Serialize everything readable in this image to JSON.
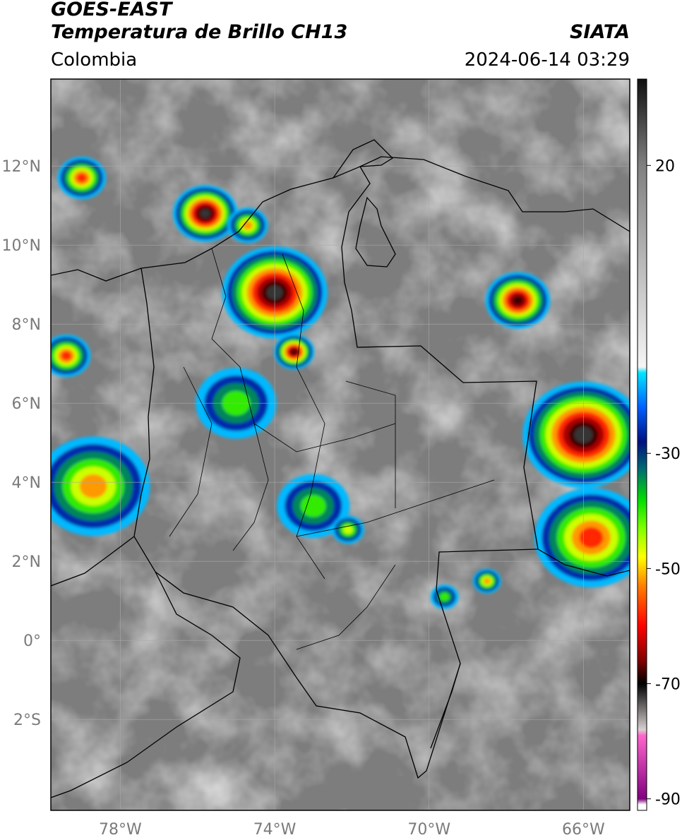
{
  "header": {
    "satellite": "GOES-EAST",
    "product": "Temperatura de Brillo CH13",
    "brand": "SIATA",
    "region": "Colombia",
    "timestamp": "2024-06-14 03:29"
  },
  "map": {
    "lon_range": [
      -79.8,
      -64.8
    ],
    "lat_range": [
      -4.3,
      14.2
    ],
    "lat_ticks": [
      {
        "value": 12,
        "label": "12°N"
      },
      {
        "value": 10,
        "label": "10°N"
      },
      {
        "value": 8,
        "label": "8°N"
      },
      {
        "value": 6,
        "label": "6°N"
      },
      {
        "value": 4,
        "label": "4°N"
      },
      {
        "value": 2,
        "label": "2°N"
      },
      {
        "value": 0,
        "label": "0°"
      },
      {
        "value": -2,
        "label": "2°S"
      }
    ],
    "lon_ticks": [
      {
        "value": -78,
        "label": "78°W"
      },
      {
        "value": -74,
        "label": "74°W"
      },
      {
        "value": -70,
        "label": "70°W"
      },
      {
        "value": -66,
        "label": "66°W"
      }
    ],
    "colors": {
      "background_gray": "#7d7d7d",
      "border": "#000000",
      "grid": "#a9a9a9"
    }
  },
  "colorbar": {
    "range": [
      -92,
      35
    ],
    "ticks": [
      {
        "value": 20,
        "label": "20"
      },
      {
        "value": -30,
        "label": "-30"
      },
      {
        "value": -50,
        "label": "-50"
      },
      {
        "value": -70,
        "label": "-70"
      },
      {
        "value": -90,
        "label": "-90"
      }
    ],
    "stops": [
      {
        "value": 35,
        "color": "#101010"
      },
      {
        "value": 20,
        "color": "#808080"
      },
      {
        "value": -15,
        "color": "#f5f5f5"
      },
      {
        "value": -16,
        "color": "#00e5ff"
      },
      {
        "value": -22,
        "color": "#0060ff"
      },
      {
        "value": -28,
        "color": "#001080"
      },
      {
        "value": -33,
        "color": "#007070"
      },
      {
        "value": -38,
        "color": "#00dd00"
      },
      {
        "value": -43,
        "color": "#80ff00"
      },
      {
        "value": -48,
        "color": "#ffff00"
      },
      {
        "value": -53,
        "color": "#ff8000"
      },
      {
        "value": -60,
        "color": "#ff0000"
      },
      {
        "value": -66,
        "color": "#800000"
      },
      {
        "value": -70,
        "color": "#000000"
      },
      {
        "value": -78,
        "color": "#d8d0d0"
      },
      {
        "value": -79,
        "color": "#ff66cc"
      },
      {
        "value": -90,
        "color": "#800080"
      },
      {
        "value": -91,
        "color": "#ffffff"
      }
    ]
  },
  "storm_cells": [
    {
      "lon": -75.8,
      "lat": 10.8,
      "r": 0.8,
      "peak": -72
    },
    {
      "lon": -74.0,
      "lat": 8.8,
      "r": 1.3,
      "peak": -74
    },
    {
      "lon": -73.5,
      "lat": 7.3,
      "r": 0.5,
      "peak": -70
    },
    {
      "lon": -67.7,
      "lat": 8.6,
      "r": 0.8,
      "peak": -68
    },
    {
      "lon": -66.0,
      "lat": 5.2,
      "r": 1.5,
      "peak": -72
    },
    {
      "lon": -65.8,
      "lat": 2.6,
      "r": 1.4,
      "peak": -58
    },
    {
      "lon": -78.7,
      "lat": 3.9,
      "r": 1.4,
      "peak": -56
    },
    {
      "lon": -79.4,
      "lat": 7.2,
      "r": 0.6,
      "peak": -60
    },
    {
      "lon": -75.0,
      "lat": 6.0,
      "r": 1.0,
      "peak": -45
    },
    {
      "lon": -73.0,
      "lat": 3.4,
      "r": 0.9,
      "peak": -40
    },
    {
      "lon": -74.7,
      "lat": 10.5,
      "r": 0.5,
      "peak": -55
    },
    {
      "lon": -79.0,
      "lat": 11.7,
      "r": 0.6,
      "peak": -58
    },
    {
      "lon": -69.6,
      "lat": 1.1,
      "r": 0.35,
      "peak": -42
    },
    {
      "lon": -68.5,
      "lat": 1.5,
      "r": 0.35,
      "peak": -55
    },
    {
      "lon": -72.1,
      "lat": 2.8,
      "r": 0.4,
      "peak": -50
    }
  ]
}
